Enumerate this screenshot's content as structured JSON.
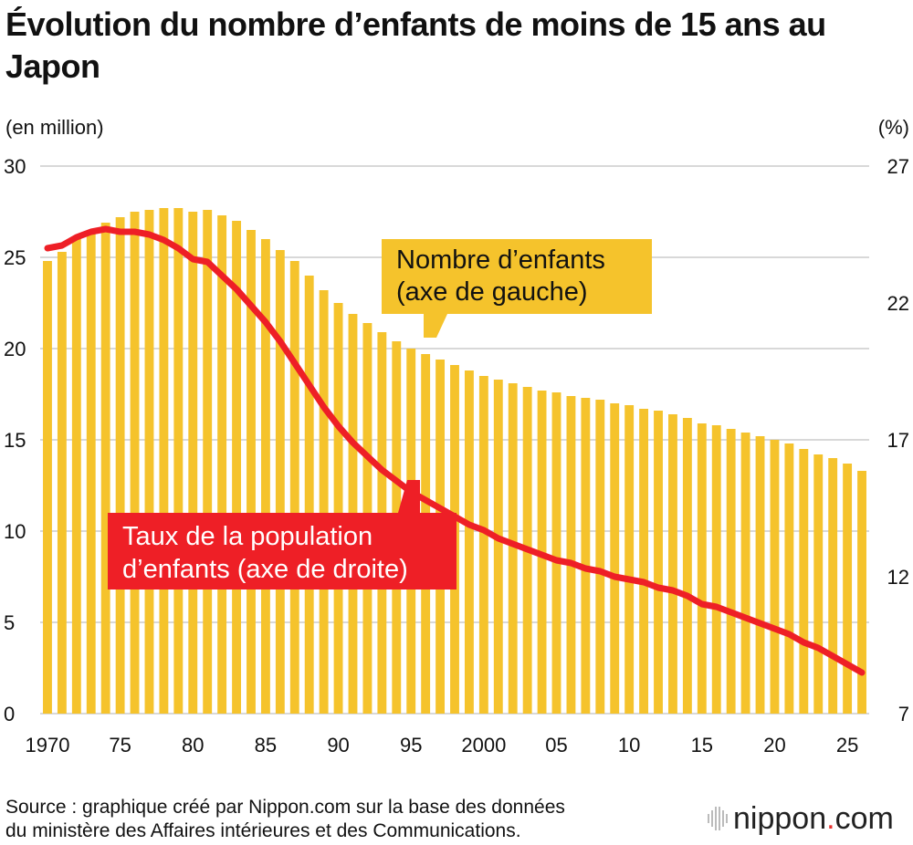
{
  "title": "Évolution du nombre d’enfants de moins de 15 ans au Japon",
  "source": {
    "line1": "Source : graphique créé par Nippon.com sur la base des données",
    "line2": "du ministère des Affaires intérieures et des Communications."
  },
  "logo": {
    "name": "nippon",
    "dot": ".",
    "suffix": "com"
  },
  "callouts": {
    "children": {
      "line1": "Nombre d’enfants",
      "line2": "(axe de gauche)"
    },
    "ratio": {
      "line1": "Taux de la population",
      "line2": "d’enfants (axe de droite)"
    }
  },
  "colors": {
    "bar": "#f5c32c",
    "line": "#ee1f26",
    "grid": "#cccccc"
  },
  "chart_data": {
    "type": "bar",
    "title": "Évolution du nombre d’enfants de moins de 15 ans au Japon",
    "y_left_label": "(en million)",
    "y_right_label": "(%)",
    "ylim_left": [
      0,
      30
    ],
    "ylim_right": [
      7,
      27
    ],
    "y_left_ticks": [
      "30",
      "25",
      "20",
      "15",
      "10",
      "5",
      "0"
    ],
    "y_right_ticks": [
      "27",
      "22",
      "17",
      "12",
      "7"
    ],
    "x_ticks": [
      {
        "year": 1970,
        "label": "1970"
      },
      {
        "year": 1975,
        "label": "75"
      },
      {
        "year": 1980,
        "label": "80"
      },
      {
        "year": 1985,
        "label": "85"
      },
      {
        "year": 1990,
        "label": "90"
      },
      {
        "year": 1995,
        "label": "95"
      },
      {
        "year": 2000,
        "label": "2000"
      },
      {
        "year": 2005,
        "label": "05"
      },
      {
        "year": 2010,
        "label": "10"
      },
      {
        "year": 2015,
        "label": "15"
      },
      {
        "year": 2020,
        "label": "20"
      },
      {
        "year": 2025,
        "label": "25"
      }
    ],
    "grid": true,
    "series": [
      {
        "name": "Nombre d’enfants (axe de gauche)",
        "axis": "left",
        "chart_type": "bar",
        "x": [
          1970,
          1971,
          1972,
          1973,
          1974,
          1975,
          1976,
          1977,
          1978,
          1979,
          1980,
          1981,
          1982,
          1983,
          1984,
          1985,
          1986,
          1987,
          1988,
          1989,
          1990,
          1991,
          1992,
          1993,
          1994,
          1995,
          1996,
          1997,
          1998,
          1999,
          2000,
          2001,
          2002,
          2003,
          2004,
          2005,
          2006,
          2007,
          2008,
          2009,
          2010,
          2011,
          2012,
          2013,
          2014,
          2015,
          2016,
          2017,
          2018,
          2019,
          2020,
          2021,
          2022,
          2023,
          2024,
          2025,
          2026
        ],
        "values": [
          24.8,
          25.3,
          26.0,
          26.4,
          26.9,
          27.2,
          27.5,
          27.6,
          27.7,
          27.7,
          27.5,
          27.6,
          27.3,
          27.0,
          26.5,
          26.0,
          25.4,
          24.8,
          24.0,
          23.2,
          22.5,
          21.9,
          21.4,
          20.9,
          20.4,
          20.0,
          19.7,
          19.4,
          19.1,
          18.8,
          18.5,
          18.3,
          18.1,
          17.9,
          17.7,
          17.6,
          17.4,
          17.3,
          17.2,
          17.0,
          16.9,
          16.7,
          16.6,
          16.4,
          16.2,
          15.9,
          15.8,
          15.6,
          15.4,
          15.2,
          15.0,
          14.8,
          14.5,
          14.2,
          14.0,
          13.7,
          13.3
        ]
      },
      {
        "name": "Taux de la population d’enfants (axe de droite)",
        "axis": "right",
        "chart_type": "line",
        "x": [
          1970,
          1971,
          1972,
          1973,
          1974,
          1975,
          1976,
          1977,
          1978,
          1979,
          1980,
          1981,
          1982,
          1983,
          1984,
          1985,
          1986,
          1987,
          1988,
          1989,
          1990,
          1991,
          1992,
          1993,
          1994,
          1995,
          1996,
          1997,
          1998,
          1999,
          2000,
          2001,
          2002,
          2003,
          2004,
          2005,
          2006,
          2007,
          2008,
          2009,
          2010,
          2011,
          2012,
          2013,
          2014,
          2015,
          2016,
          2017,
          2018,
          2019,
          2020,
          2021,
          2022,
          2023,
          2024,
          2025,
          2026
        ],
        "values": [
          24.0,
          24.1,
          24.4,
          24.6,
          24.7,
          24.6,
          24.6,
          24.5,
          24.3,
          24.0,
          23.6,
          23.5,
          23.0,
          22.5,
          21.9,
          21.3,
          20.6,
          19.8,
          19.0,
          18.2,
          17.5,
          16.9,
          16.4,
          15.9,
          15.5,
          15.1,
          14.8,
          14.5,
          14.2,
          13.9,
          13.7,
          13.4,
          13.2,
          13.0,
          12.8,
          12.6,
          12.5,
          12.3,
          12.2,
          12.0,
          11.9,
          11.8,
          11.6,
          11.5,
          11.3,
          11.0,
          10.9,
          10.7,
          10.5,
          10.3,
          10.1,
          9.9,
          9.6,
          9.4,
          9.1,
          8.8,
          8.5
        ]
      }
    ]
  }
}
